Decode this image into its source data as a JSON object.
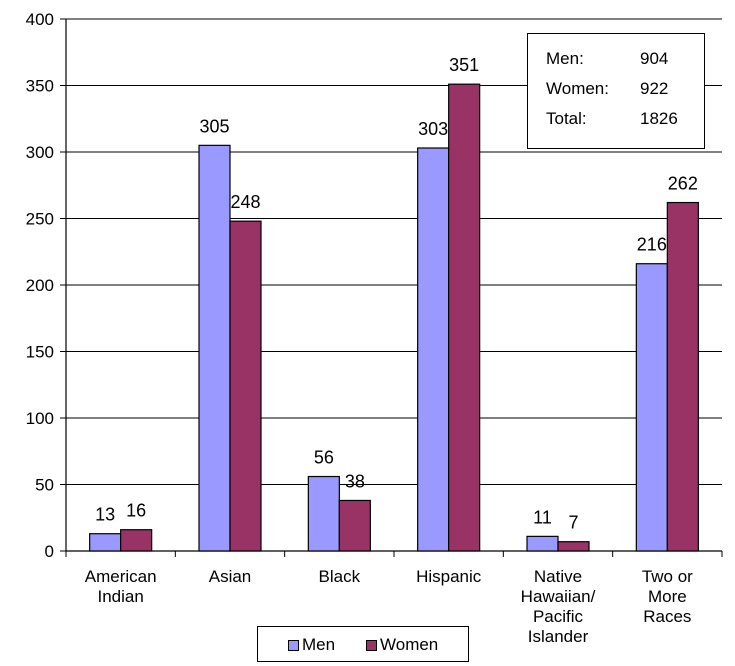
{
  "chart_data": {
    "type": "bar",
    "categories": [
      [
        "American",
        "Indian"
      ],
      [
        "Asian"
      ],
      [
        "Black"
      ],
      [
        "Hispanic"
      ],
      [
        "Native",
        "Hawaiian/",
        "Pacific",
        "Islander"
      ],
      [
        "Two or",
        "More",
        "Races"
      ]
    ],
    "series": [
      {
        "name": "Men",
        "color": "#9999ff",
        "values": [
          13,
          305,
          56,
          303,
          11,
          216
        ]
      },
      {
        "name": "Women",
        "color": "#993366",
        "values": [
          16,
          248,
          38,
          351,
          7,
          262
        ]
      }
    ],
    "ylim": [
      0,
      400
    ],
    "yticks": [
      0,
      50,
      100,
      150,
      200,
      250,
      300,
      350,
      400
    ],
    "grid": true,
    "legend_position": "bottom"
  },
  "totals_box": [
    {
      "label": "Men:",
      "value": "904"
    },
    {
      "label": "Women:",
      "value": "922"
    },
    {
      "label": "Total:",
      "value": "1826"
    }
  ],
  "legend": {
    "men_label": "Men",
    "women_label": "Women"
  }
}
